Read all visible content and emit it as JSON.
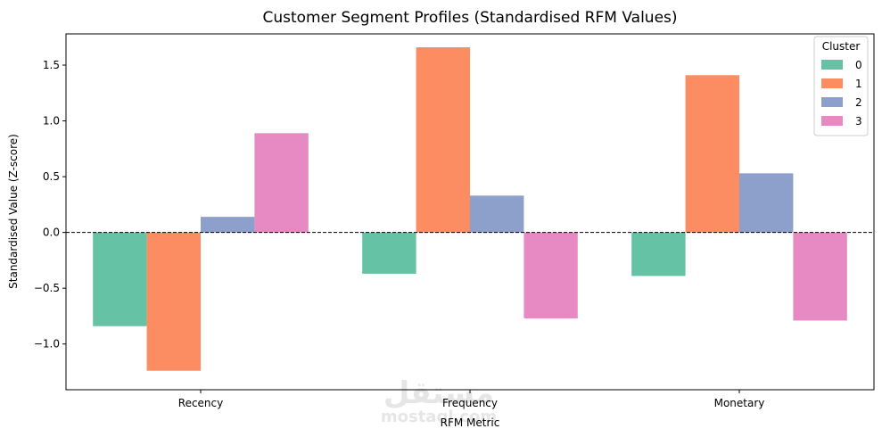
{
  "chart_data": {
    "type": "bar",
    "title": "Customer Segment Profiles (Standardised RFM Values)",
    "xlabel": "RFM Metric",
    "ylabel": "Standardised Value (Z-score)",
    "categories": [
      "Recency",
      "Frequency",
      "Monetary"
    ],
    "ylim": [
      -1.41,
      1.78
    ],
    "yticks": [
      -1.0,
      -0.5,
      0.0,
      0.5,
      1.0,
      1.5
    ],
    "ytick_labels": [
      "−1.0",
      "−0.5",
      "0.0",
      "0.5",
      "1.0",
      "1.5"
    ],
    "reference_line": {
      "y": 0,
      "style": "dashed",
      "color": "#000000"
    },
    "legend": {
      "title": "Cluster",
      "placement": "top-right"
    },
    "series": [
      {
        "name": "0",
        "color": "#66c2a5",
        "values": [
          -0.84,
          -0.37,
          -0.39
        ]
      },
      {
        "name": "1",
        "color": "#fc8d62",
        "values": [
          -1.24,
          1.66,
          1.41
        ]
      },
      {
        "name": "2",
        "color": "#8da0cb",
        "values": [
          0.14,
          0.33,
          0.53
        ]
      },
      {
        "name": "3",
        "color": "#e78ac3",
        "values": [
          0.89,
          -0.77,
          -0.79
        ]
      }
    ],
    "grid": false
  },
  "watermark": {
    "arabic": "مستقل",
    "latin": "mostaql.com"
  }
}
